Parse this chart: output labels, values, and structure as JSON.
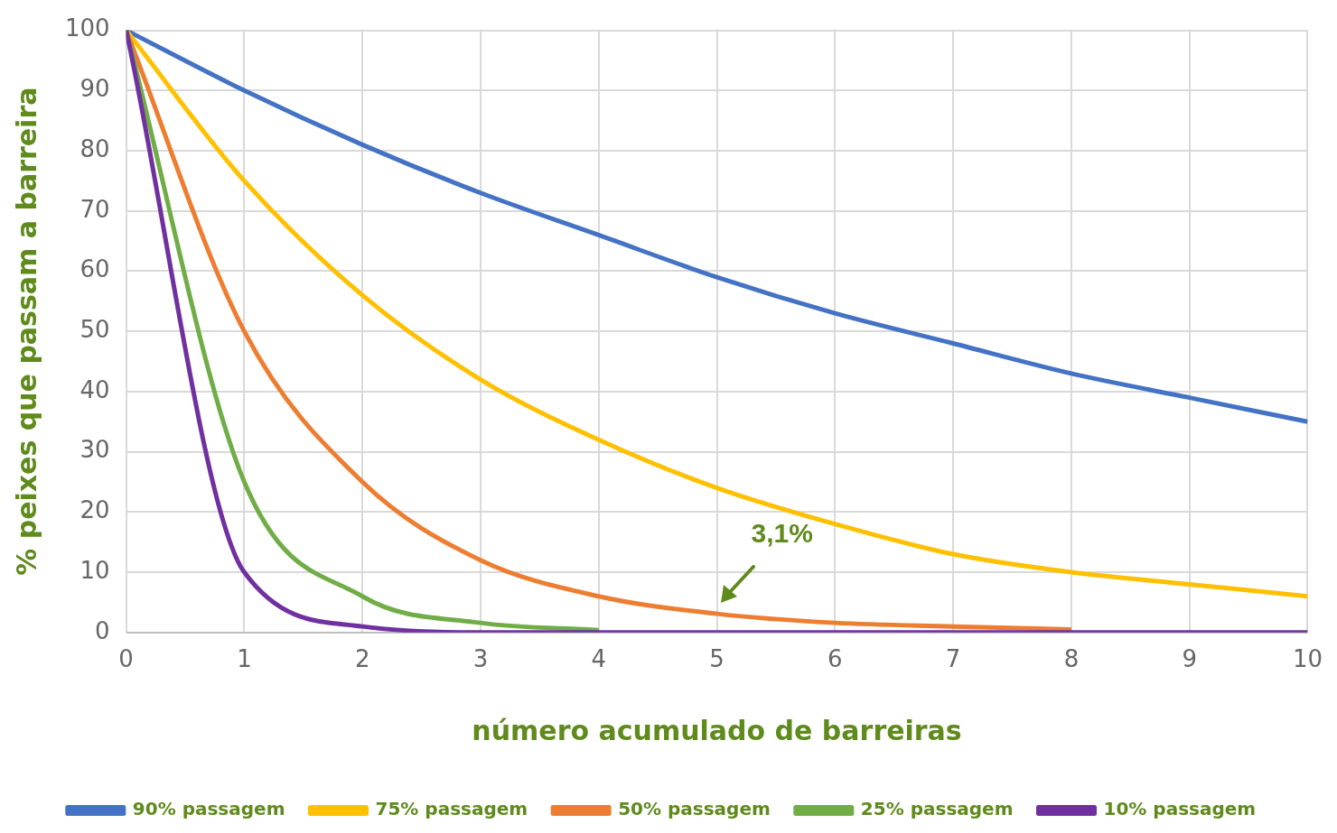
{
  "chart_data": {
    "type": "line",
    "xlabel": "número acumulado de barreiras",
    "ylabel": "% peixes que passam a barreira",
    "x": [
      0,
      1,
      2,
      3,
      4,
      5,
      6,
      7,
      8,
      9,
      10
    ],
    "series": [
      {
        "name": "90% passagem",
        "color": "#4472c4",
        "values": [
          100,
          90,
          81,
          73,
          66,
          59,
          53,
          48,
          43,
          39,
          35
        ]
      },
      {
        "name": "75% passagem",
        "color": "#ffc000",
        "values": [
          100,
          75,
          56,
          42,
          32,
          24,
          18,
          13,
          10,
          8,
          6
        ]
      },
      {
        "name": "50% passagem",
        "color": "#ed7d31",
        "values": [
          100,
          50,
          25,
          12,
          6,
          3.1,
          1.6,
          1,
          0.5,
          null,
          null
        ]
      },
      {
        "name": "25% passagem",
        "color": "#70ad47",
        "values": [
          100,
          25,
          6,
          1.6,
          0.4,
          null,
          null,
          null,
          null,
          null,
          null
        ]
      },
      {
        "name": "10% passagem",
        "color": "#7030a0",
        "values": [
          100,
          10,
          1,
          0,
          0,
          0,
          0,
          0,
          0,
          0,
          0
        ]
      }
    ],
    "xlim": [
      0,
      10
    ],
    "xticks": [
      0,
      1,
      2,
      3,
      4,
      5,
      6,
      7,
      8,
      9,
      10
    ],
    "ylim": [
      0,
      100
    ],
    "yticks": [
      0,
      10,
      20,
      30,
      40,
      50,
      60,
      70,
      80,
      90,
      100
    ],
    "annotations": [
      {
        "text": "3,1%",
        "x": 5,
        "y": 3.1
      }
    ],
    "grid": true,
    "legend": "bottom",
    "marker": "none",
    "line_style": "solid"
  }
}
